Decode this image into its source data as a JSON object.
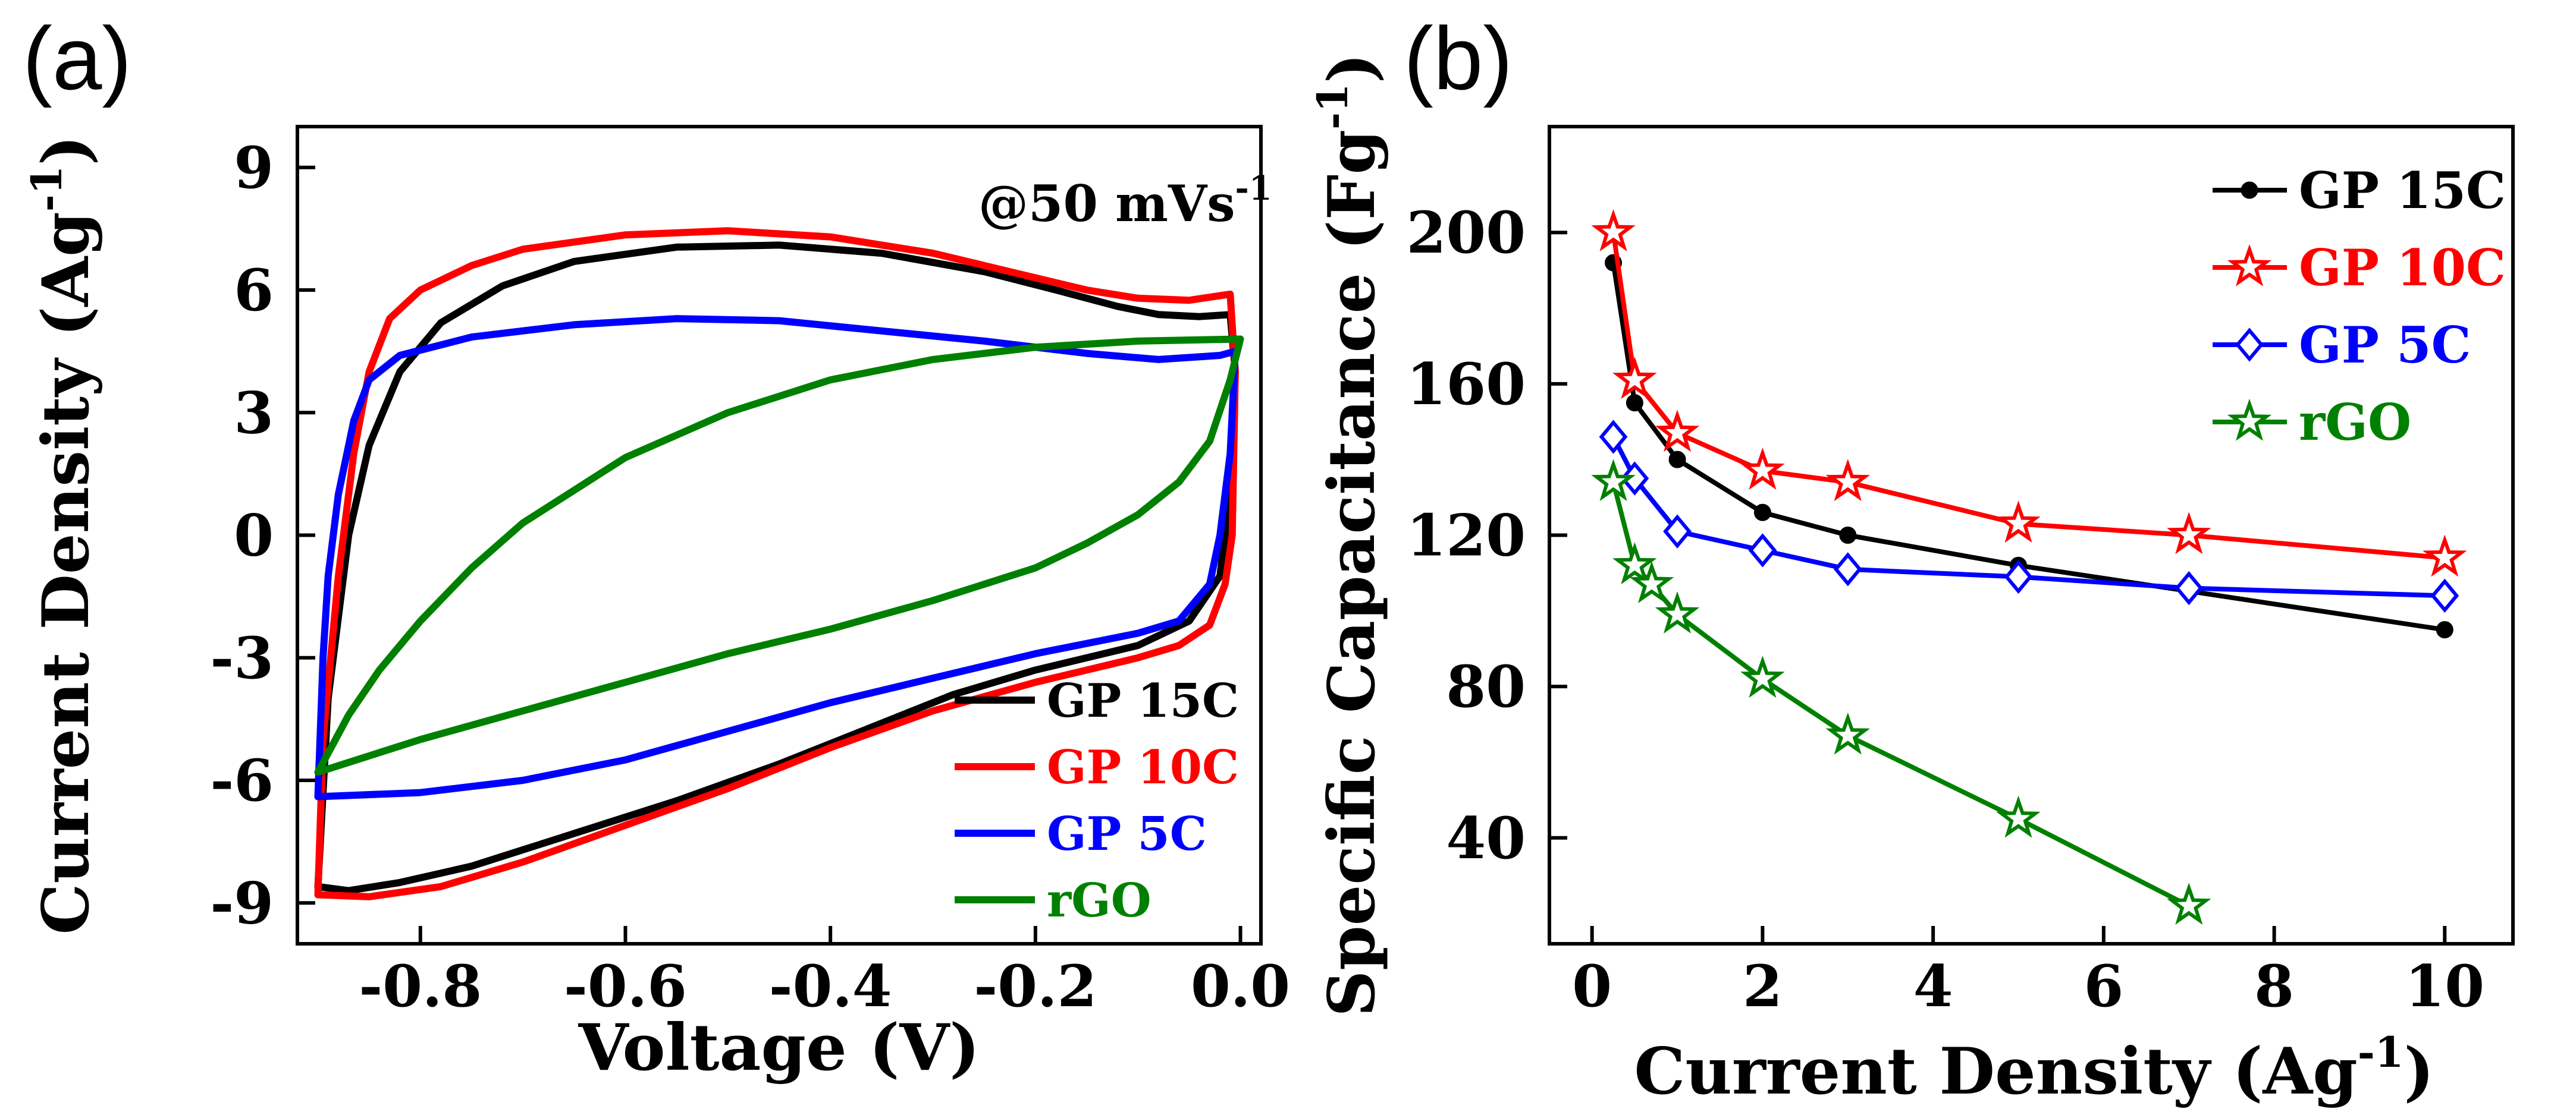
{
  "chart_data": [
    {
      "type": "line",
      "panel_label": "(a)",
      "annotation": "@50 mVs",
      "annotation_sup": "-1",
      "xlabel": "Voltage (V)",
      "ylabel": "Current Density (Ag",
      "ylabel_sup": "-1",
      "ylabel_close": ")",
      "xlim": [
        -0.92,
        0.02
      ],
      "ylim": [
        -10,
        10
      ],
      "xticks": [
        -0.8,
        -0.6,
        -0.4,
        -0.2,
        0.0
      ],
      "xtick_labels": [
        "-0.8",
        "-0.6",
        "-0.4",
        "-0.2",
        "0.0"
      ],
      "yticks": [
        9,
        6,
        3,
        0,
        -3,
        -6,
        -9
      ],
      "ytick_labels": [
        "9",
        "6",
        "3",
        "0",
        "-3",
        "-6",
        "-9"
      ],
      "legend_position": "bottom-right",
      "series": [
        {
          "name": "GP 15C",
          "color": "#000000",
          "points": [
            [
              -0.9,
              -8.6
            ],
            [
              -0.89,
              -4
            ],
            [
              -0.87,
              0
            ],
            [
              -0.85,
              2.2
            ],
            [
              -0.82,
              4
            ],
            [
              -0.78,
              5.2
            ],
            [
              -0.72,
              6.1
            ],
            [
              -0.65,
              6.7
            ],
            [
              -0.55,
              7.05
            ],
            [
              -0.45,
              7.1
            ],
            [
              -0.35,
              6.9
            ],
            [
              -0.25,
              6.45
            ],
            [
              -0.18,
              6
            ],
            [
              -0.12,
              5.6
            ],
            [
              -0.08,
              5.4
            ],
            [
              -0.04,
              5.35
            ],
            [
              -0.01,
              5.4
            ],
            [
              -0.005,
              4
            ],
            [
              -0.01,
              1
            ],
            [
              -0.02,
              -1
            ],
            [
              -0.05,
              -2.1
            ],
            [
              -0.1,
              -2.7
            ],
            [
              -0.15,
              -3
            ],
            [
              -0.2,
              -3.3
            ],
            [
              -0.28,
              -3.9
            ],
            [
              -0.35,
              -4.6
            ],
            [
              -0.45,
              -5.6
            ],
            [
              -0.55,
              -6.5
            ],
            [
              -0.65,
              -7.3
            ],
            [
              -0.75,
              -8.1
            ],
            [
              -0.82,
              -8.5
            ],
            [
              -0.87,
              -8.7
            ],
            [
              -0.9,
              -8.6
            ]
          ]
        },
        {
          "name": "GP 10C",
          "color": "#ff0000",
          "points": [
            [
              -0.9,
              -8.8
            ],
            [
              -0.895,
              -5
            ],
            [
              -0.88,
              -1
            ],
            [
              -0.865,
              2
            ],
            [
              -0.85,
              4
            ],
            [
              -0.83,
              5.3
            ],
            [
              -0.8,
              6
            ],
            [
              -0.75,
              6.6
            ],
            [
              -0.7,
              7
            ],
            [
              -0.6,
              7.35
            ],
            [
              -0.5,
              7.45
            ],
            [
              -0.4,
              7.3
            ],
            [
              -0.3,
              6.9
            ],
            [
              -0.2,
              6.3
            ],
            [
              -0.15,
              6
            ],
            [
              -0.1,
              5.8
            ],
            [
              -0.05,
              5.75
            ],
            [
              -0.01,
              5.9
            ],
            [
              -0.005,
              4
            ],
            [
              -0.008,
              0
            ],
            [
              -0.015,
              -1.2
            ],
            [
              -0.03,
              -2.2
            ],
            [
              -0.06,
              -2.7
            ],
            [
              -0.1,
              -3
            ],
            [
              -0.15,
              -3.3
            ],
            [
              -0.2,
              -3.6
            ],
            [
              -0.3,
              -4.3
            ],
            [
              -0.4,
              -5.2
            ],
            [
              -0.5,
              -6.2
            ],
            [
              -0.6,
              -7.1
            ],
            [
              -0.7,
              -8
            ],
            [
              -0.78,
              -8.6
            ],
            [
              -0.85,
              -8.85
            ],
            [
              -0.9,
              -8.8
            ]
          ]
        },
        {
          "name": "GP 5C",
          "color": "#0000ff",
          "points": [
            [
              -0.9,
              -6.4
            ],
            [
              -0.895,
              -3
            ],
            [
              -0.89,
              -1
            ],
            [
              -0.88,
              1
            ],
            [
              -0.865,
              2.8
            ],
            [
              -0.85,
              3.8
            ],
            [
              -0.82,
              4.4
            ],
            [
              -0.75,
              4.85
            ],
            [
              -0.65,
              5.15
            ],
            [
              -0.55,
              5.3
            ],
            [
              -0.45,
              5.25
            ],
            [
              -0.35,
              5.0
            ],
            [
              -0.25,
              4.75
            ],
            [
              -0.15,
              4.45
            ],
            [
              -0.08,
              4.3
            ],
            [
              -0.02,
              4.4
            ],
            [
              -0.005,
              4.5
            ],
            [
              -0.01,
              2
            ],
            [
              -0.02,
              0
            ],
            [
              -0.03,
              -1.2
            ],
            [
              -0.06,
              -2.1
            ],
            [
              -0.1,
              -2.4
            ],
            [
              -0.2,
              -2.9
            ],
            [
              -0.3,
              -3.5
            ],
            [
              -0.4,
              -4.1
            ],
            [
              -0.5,
              -4.8
            ],
            [
              -0.6,
              -5.5
            ],
            [
              -0.7,
              -6
            ],
            [
              -0.8,
              -6.3
            ],
            [
              -0.9,
              -6.4
            ]
          ]
        },
        {
          "name": "rGO",
          "color": "#008000",
          "points": [
            [
              -0.9,
              -5.8
            ],
            [
              -0.87,
              -4.4
            ],
            [
              -0.84,
              -3.3
            ],
            [
              -0.8,
              -2.1
            ],
            [
              -0.75,
              -0.8
            ],
            [
              -0.7,
              0.3
            ],
            [
              -0.6,
              1.9
            ],
            [
              -0.5,
              3.0
            ],
            [
              -0.4,
              3.8
            ],
            [
              -0.3,
              4.3
            ],
            [
              -0.2,
              4.6
            ],
            [
              -0.1,
              4.75
            ],
            [
              0.0,
              4.8
            ],
            [
              -0.01,
              3.8
            ],
            [
              -0.03,
              2.3
            ],
            [
              -0.06,
              1.3
            ],
            [
              -0.1,
              0.5
            ],
            [
              -0.15,
              -0.2
            ],
            [
              -0.2,
              -0.8
            ],
            [
              -0.3,
              -1.6
            ],
            [
              -0.4,
              -2.3
            ],
            [
              -0.5,
              -2.9
            ],
            [
              -0.6,
              -3.6
            ],
            [
              -0.7,
              -4.3
            ],
            [
              -0.8,
              -5
            ],
            [
              -0.9,
              -5.8
            ]
          ]
        }
      ]
    },
    {
      "type": "line",
      "panel_label": "(b)",
      "xlabel": "Current Density (Ag",
      "xlabel_sup": "-1",
      "xlabel_close": ")",
      "ylabel": "Specific Capacitance (Fg",
      "ylabel_sup": "-1",
      "ylabel_close": ")",
      "xlim": [
        -0.5,
        10.8
      ],
      "ylim": [
        12,
        228
      ],
      "xticks": [
        0,
        2,
        4,
        6,
        8,
        10
      ],
      "xtick_labels": [
        "0",
        "2",
        "4",
        "6",
        "8",
        "10"
      ],
      "yticks": [
        40,
        80,
        120,
        160,
        200
      ],
      "ytick_labels": [
        "40",
        "80",
        "120",
        "160",
        "200"
      ],
      "legend_position": "top-right",
      "series": [
        {
          "name": "GP 15C",
          "color": "#000000",
          "marker": "dot",
          "x": [
            0.25,
            0.5,
            1,
            2,
            3,
            5,
            10
          ],
          "y": [
            192,
            155,
            140,
            126,
            120,
            112,
            95
          ]
        },
        {
          "name": "GP 10C",
          "color": "#ff0000",
          "marker": "star",
          "x": [
            0.25,
            0.5,
            1,
            2,
            3,
            5,
            7,
            10
          ],
          "y": [
            200,
            161,
            147,
            137,
            134,
            123,
            120,
            114
          ]
        },
        {
          "name": "GP 5C",
          "color": "#0000ff",
          "marker": "diamond",
          "x": [
            0.25,
            0.5,
            1,
            2,
            3,
            5,
            7,
            10
          ],
          "y": [
            146,
            135,
            121,
            116,
            111,
            109,
            106,
            104
          ]
        },
        {
          "name": "rGO",
          "color": "#008000",
          "marker": "star",
          "x": [
            0.25,
            0.5,
            0.7,
            1,
            2,
            3,
            5,
            7
          ],
          "y": [
            134,
            112,
            107,
            99,
            82,
            67,
            45,
            22
          ]
        }
      ]
    }
  ]
}
